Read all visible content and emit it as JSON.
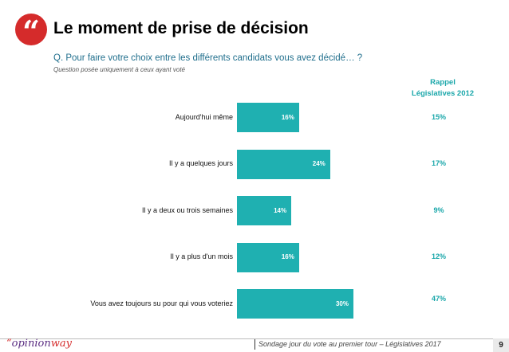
{
  "header": {
    "quote_glyph": "“",
    "title": "Le moment de prise de décision",
    "question": "Q. Pour faire votre choix entre les différents candidats vous avez décidé… ?",
    "question_note": "Question posée uniquement à ceux ayant voté"
  },
  "recall": {
    "header_line1": "Rappel",
    "header_line2": "Législatives 2012"
  },
  "chart_data": {
    "type": "bar",
    "orientation": "horizontal",
    "title": "Le moment de prise de décision",
    "categories": [
      "Aujourd'hui même",
      "Il y a quelques jours",
      "Il y a deux ou trois semaines",
      "Il y a plus d'un mois",
      "Vous avez toujours su pour qui vous voteriez"
    ],
    "values": [
      16,
      24,
      14,
      16,
      30
    ],
    "value_labels": [
      "16%",
      "24%",
      "14%",
      "16%",
      "30%"
    ],
    "recall_2012_labels": [
      "15%",
      "17%",
      "9%",
      "12%",
      "47%"
    ],
    "recall_2012_values": [
      15,
      17,
      9,
      12,
      47
    ],
    "xlim": [
      0,
      30
    ],
    "unit": "%",
    "bar_color": "#1fb0b1",
    "accent_color": "#1aa7aa"
  },
  "footer": {
    "logo_accent": "“",
    "logo_main": "opinion",
    "logo_suffix": "way",
    "source": "Sondage jour du vote au premier tour – Législatives 2017",
    "page_number": "9"
  }
}
